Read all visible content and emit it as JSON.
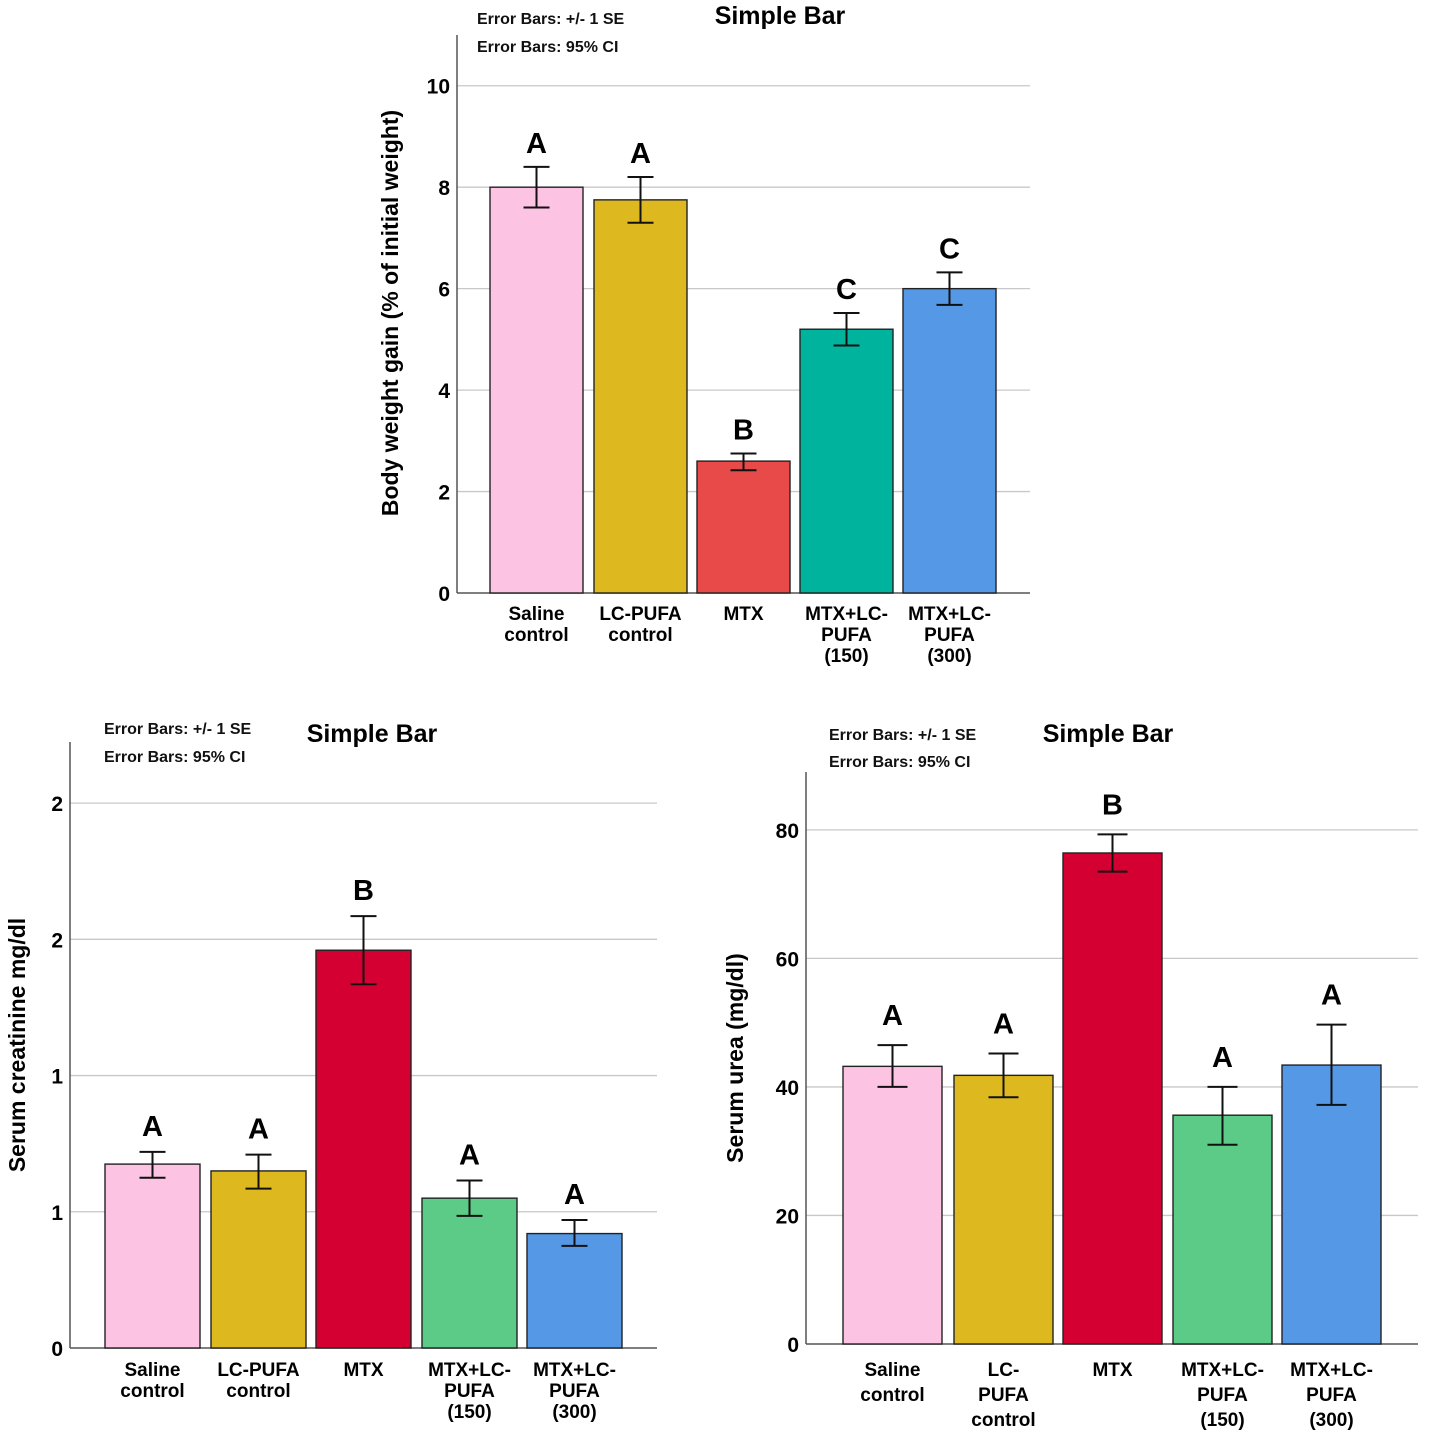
{
  "chart_data": [
    {
      "id": "chart-body-weight",
      "type": "bar",
      "title": "Simple Bar",
      "notes": [
        "Error Bars: +/- 1 SE",
        "Error Bars: 95% CI"
      ],
      "ylabel": "Body weight gain (% of initial weight)",
      "xlabel": "",
      "ylim": [
        0,
        11
      ],
      "yticks": [
        {
          "value": 0,
          "label": "0"
        },
        {
          "value": 2,
          "label": "2"
        },
        {
          "value": 4,
          "label": "4"
        },
        {
          "value": 6,
          "label": "6"
        },
        {
          "value": 8,
          "label": "8"
        },
        {
          "value": 10,
          "label": "10"
        }
      ],
      "categories": [
        [
          "Saline",
          "control"
        ],
        [
          "LC-PUFA",
          "control"
        ],
        [
          "MTX"
        ],
        [
          "MTX+LC-",
          "PUFA",
          "(150)"
        ],
        [
          "MTX+LC-",
          "PUFA",
          "(300)"
        ]
      ],
      "values": [
        8.0,
        7.75,
        2.6,
        5.2,
        6.0
      ],
      "error_low": [
        7.6,
        7.3,
        2.42,
        4.88,
        5.68
      ],
      "error_high": [
        8.4,
        8.2,
        2.75,
        5.52,
        6.32
      ],
      "significance": [
        "A",
        "A",
        "B",
        "C",
        "C"
      ],
      "colors": [
        "#fcc4e2",
        "#ddb91f",
        "#e84a4a",
        "#00b39d",
        "#5599e6"
      ]
    },
    {
      "id": "chart-creatinine",
      "type": "bar",
      "title": "Simple Bar",
      "notes": [
        "Error Bars: +/- 1 SE",
        "Error Bars: 95% CI"
      ],
      "ylabel": "Serum creatinine mg/dl",
      "xlabel": "",
      "ylim": [
        0,
        2.25
      ],
      "yticks": [
        {
          "value": 0,
          "label": "0"
        },
        {
          "value": 0.5,
          "label": "1"
        },
        {
          "value": 1.0,
          "label": "1"
        },
        {
          "value": 1.5,
          "label": "2"
        },
        {
          "value": 2.0,
          "label": "2"
        }
      ],
      "categories": [
        [
          "Saline",
          "control"
        ],
        [
          "LC-PUFA",
          "control"
        ],
        [
          "MTX"
        ],
        [
          "MTX+LC-",
          "PUFA",
          "(150)"
        ],
        [
          "MTX+LC-",
          "PUFA",
          "(300)"
        ]
      ],
      "values": [
        0.675,
        0.65,
        1.46,
        0.55,
        0.42
      ],
      "error_low": [
        0.625,
        0.585,
        1.335,
        0.485,
        0.375
      ],
      "error_high": [
        0.72,
        0.71,
        1.585,
        0.615,
        0.47
      ],
      "significance": [
        "A",
        "A",
        "B",
        "A",
        "A"
      ],
      "colors": [
        "#fcc4e2",
        "#ddb91f",
        "#d40032",
        "#5ccb88",
        "#5599e6"
      ]
    },
    {
      "id": "chart-urea",
      "type": "bar",
      "title": "Simple Bar",
      "notes": [
        "Error Bars: +/- 1 SE",
        "Error Bars: 95% CI"
      ],
      "ylabel": "Serum urea (mg/dl)",
      "xlabel": "",
      "ylim": [
        0,
        89
      ],
      "yticks": [
        {
          "value": 0,
          "label": "0"
        },
        {
          "value": 20,
          "label": "20"
        },
        {
          "value": 40,
          "label": "40"
        },
        {
          "value": 60,
          "label": "60"
        },
        {
          "value": 80,
          "label": "80"
        }
      ],
      "categories": [
        [
          "Saline",
          "control"
        ],
        [
          "LC-",
          "PUFA",
          "control"
        ],
        [
          "MTX"
        ],
        [
          "MTX+LC-",
          "PUFA",
          "(150)"
        ],
        [
          "MTX+LC-",
          "PUFA",
          "(300)"
        ]
      ],
      "values": [
        43.2,
        41.8,
        76.4,
        35.6,
        43.4
      ],
      "error_low": [
        40.0,
        38.4,
        73.5,
        31.0,
        37.2
      ],
      "error_high": [
        46.5,
        45.2,
        79.3,
        40.0,
        49.7
      ],
      "significance": [
        "A",
        "A",
        "B",
        "A",
        "A"
      ],
      "colors": [
        "#fcc4e2",
        "#ddb91f",
        "#d40032",
        "#5ccb88",
        "#5599e6"
      ]
    }
  ]
}
